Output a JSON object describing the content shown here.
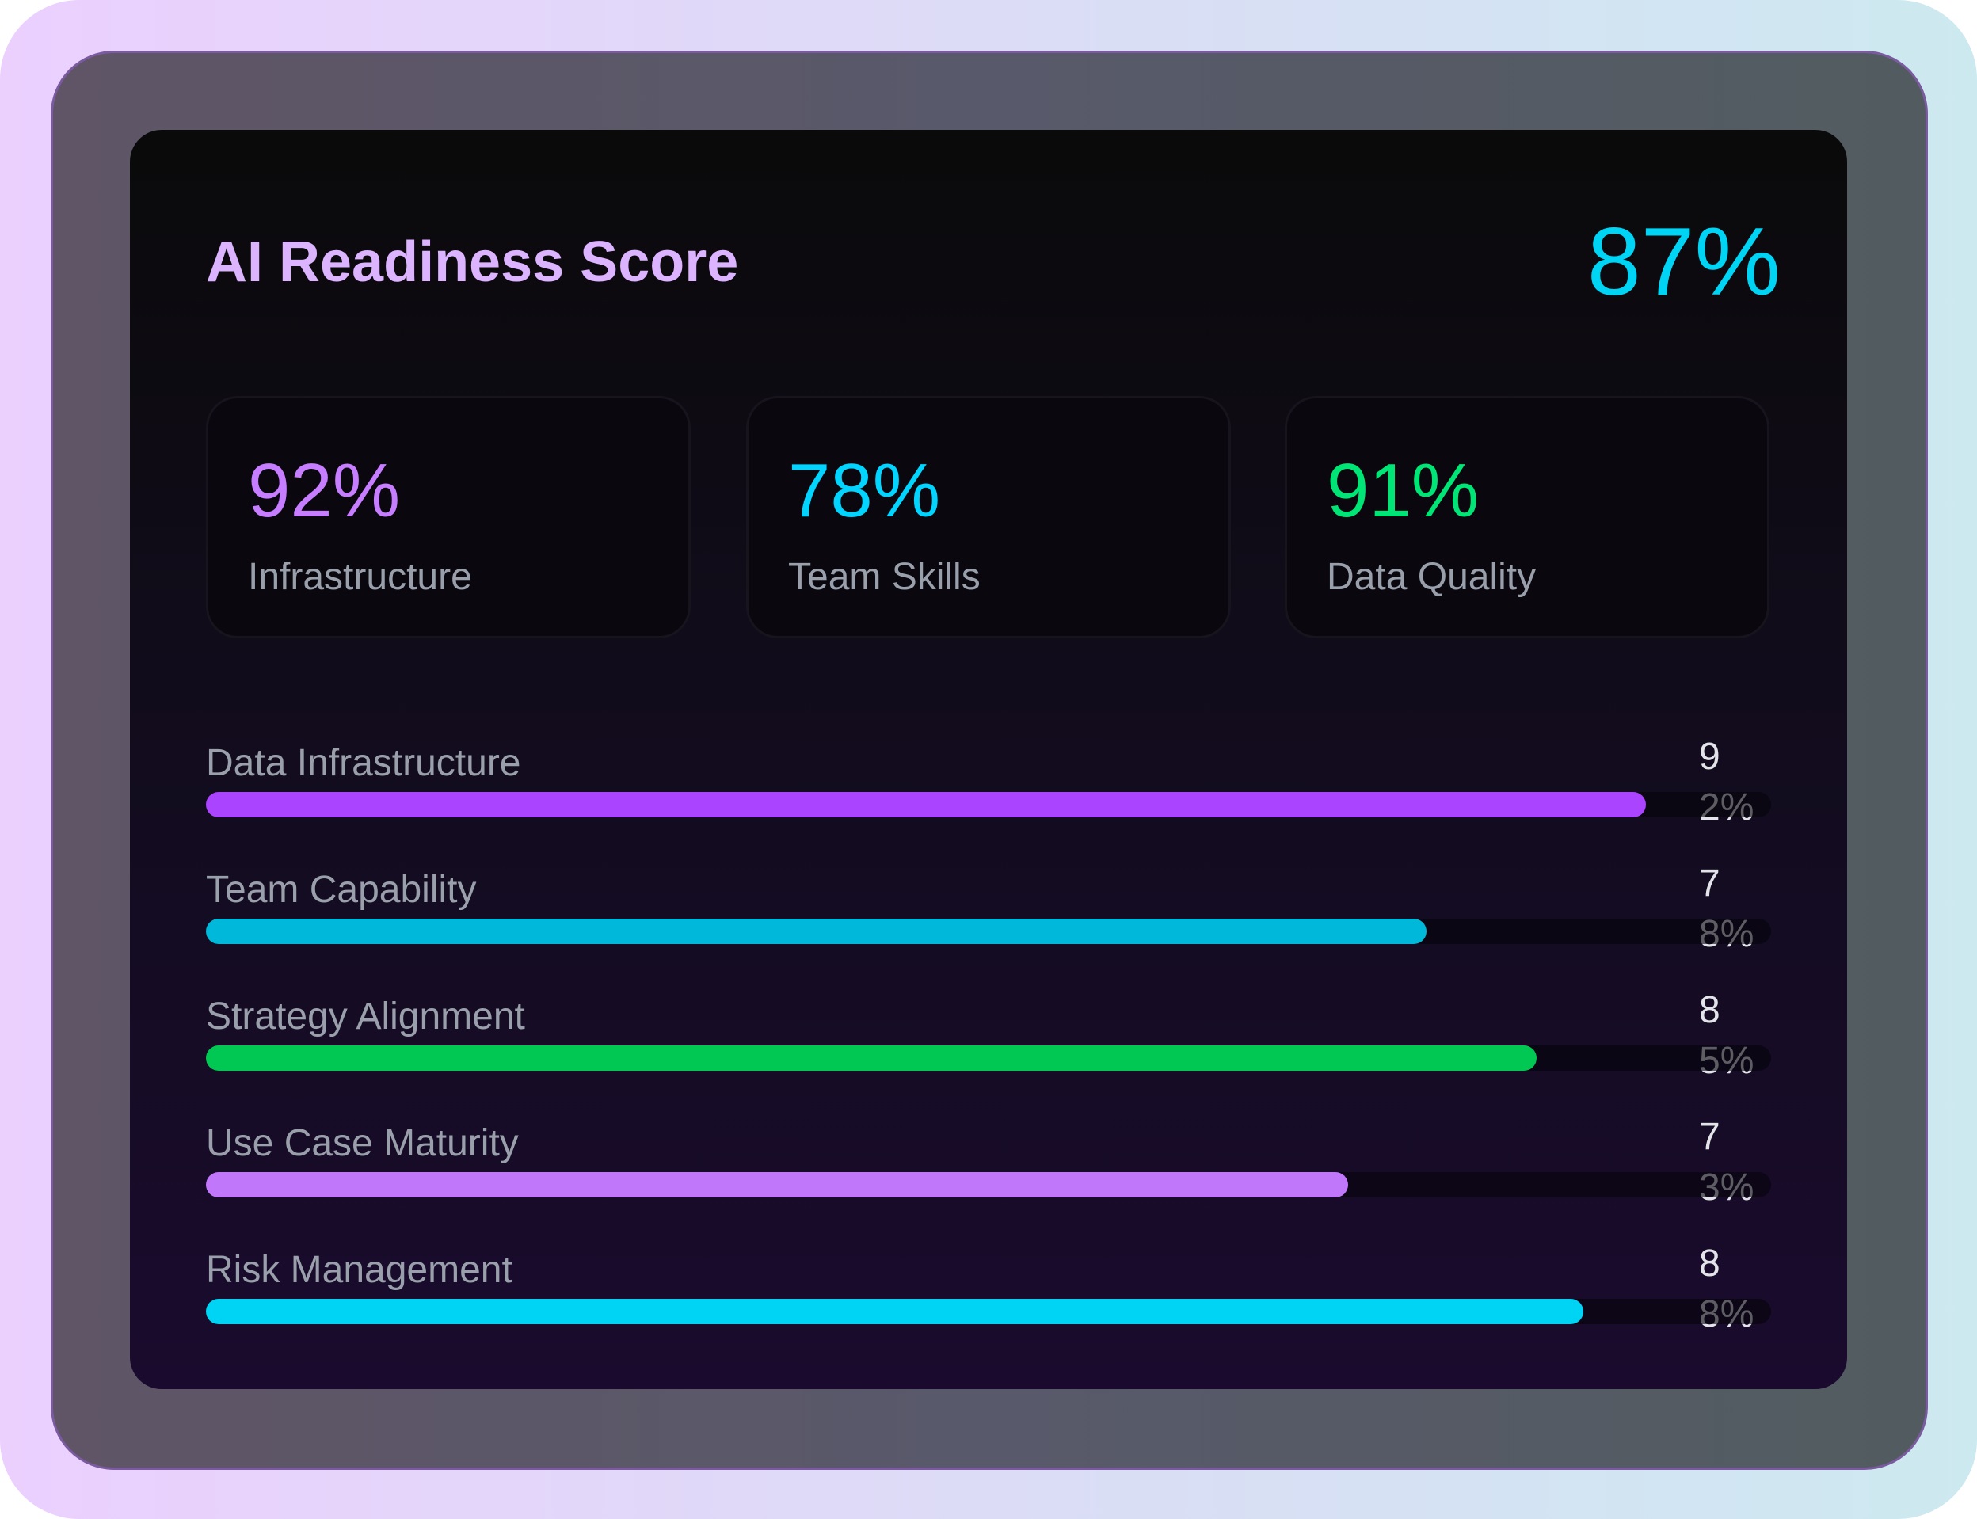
{
  "header": {
    "title": "AI Readiness Score",
    "overall_score": "87%"
  },
  "tiles": [
    {
      "value": "92%",
      "label": "Infrastructure",
      "color": "#c77dff"
    },
    {
      "value": "78%",
      "label": "Team Skills",
      "color": "#00d4ff"
    },
    {
      "value": "91%",
      "label": "Data Quality",
      "color": "#00e676"
    }
  ],
  "metrics": [
    {
      "label": "Data Infrastructure",
      "value_text": "92%",
      "value": 92,
      "color": "#aa44ff"
    },
    {
      "label": "Team Capability",
      "value_text": "78%",
      "value": 78,
      "color": "#00b8d9"
    },
    {
      "label": "Strategy Alignment",
      "value_text": "85%",
      "value": 85,
      "color": "#00c853"
    },
    {
      "label": "Use Case Maturity",
      "value_text": "73%",
      "value": 73,
      "color": "#c077fa"
    },
    {
      "label": "Risk Management",
      "value_text": "88%",
      "value": 88,
      "color": "#00d4f5"
    }
  ]
}
